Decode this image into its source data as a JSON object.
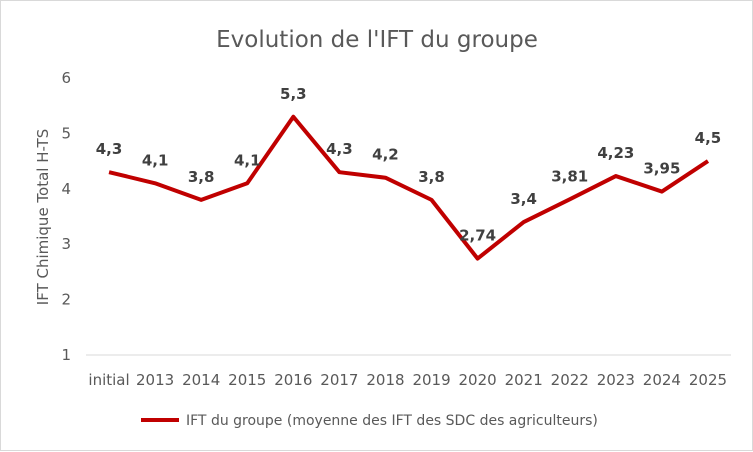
{
  "chart_data": {
    "type": "line",
    "title": "Evolution de l'IFT du groupe",
    "xlabel": "",
    "ylabel": "IFT Chimique Total H-TS",
    "categories": [
      "initial",
      "2013",
      "2014",
      "2015",
      "2016",
      "2017",
      "2018",
      "2019",
      "2020",
      "2021",
      "2022",
      "2023",
      "2024",
      "2025"
    ],
    "series": [
      {
        "name": "IFT du groupe (moyenne des IFT des SDC des agriculteurs)",
        "values": [
          4.3,
          4.1,
          3.8,
          4.1,
          5.3,
          4.3,
          4.2,
          3.8,
          2.74,
          3.4,
          3.81,
          4.23,
          3.95,
          4.5
        ],
        "labels": [
          "4,3",
          "4,1",
          "3,8",
          "4,1",
          "5,3",
          "4,3",
          "4,2",
          "3,8",
          "2,74",
          "3,4",
          "3,81",
          "4,23",
          "3,95",
          "4,5"
        ],
        "color": "#c00000"
      }
    ],
    "yticks": [
      "1",
      "2",
      "3",
      "4",
      "5",
      "6"
    ],
    "ylim": [
      1,
      6
    ],
    "grid": false,
    "legend_position": "bottom"
  }
}
